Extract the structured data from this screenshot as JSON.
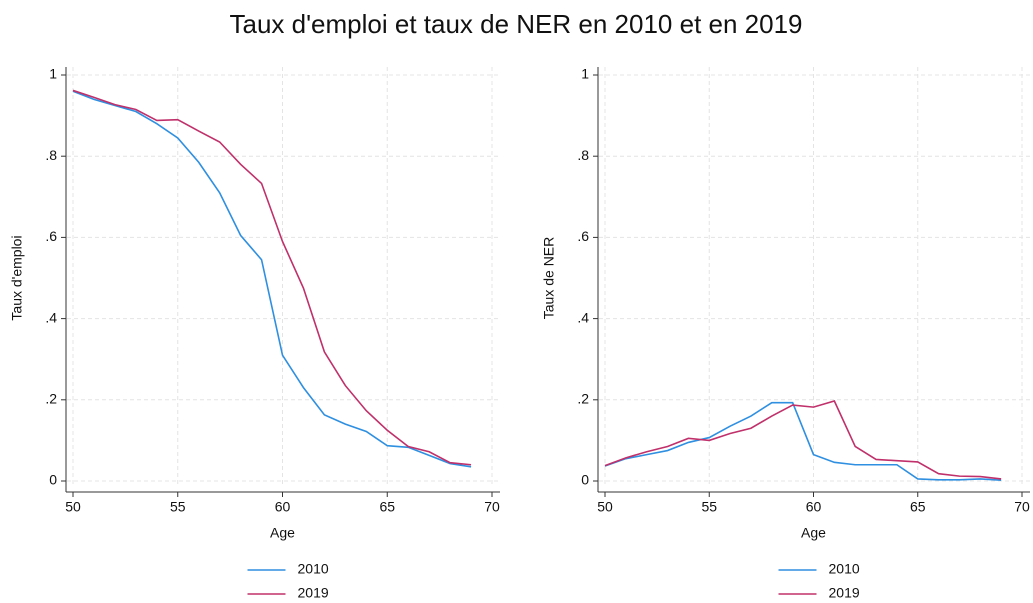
{
  "title": "Taux d'emploi et taux de NER en 2010 et en 2019",
  "chart_data": [
    {
      "type": "line",
      "xlabel": "Age",
      "ylabel": "Taux d'emploi",
      "x": [
        50,
        51,
        52,
        53,
        54,
        55,
        56,
        57,
        58,
        59,
        60,
        61,
        62,
        63,
        64,
        65,
        66,
        67,
        68,
        69
      ],
      "series": [
        {
          "name": "2010",
          "color": "#2f8fe0",
          "values": [
            0.96,
            0.94,
            0.925,
            0.91,
            0.88,
            0.845,
            0.785,
            0.71,
            0.605,
            0.545,
            0.31,
            0.23,
            0.163,
            0.14,
            0.122,
            0.087,
            0.083,
            0.063,
            0.043,
            0.035
          ]
        },
        {
          "name": "2019",
          "color": "#c0306a",
          "values": [
            0.962,
            0.945,
            0.927,
            0.915,
            0.888,
            0.89,
            0.862,
            0.835,
            0.78,
            0.733,
            0.59,
            0.475,
            0.318,
            0.235,
            0.173,
            0.125,
            0.085,
            0.072,
            0.045,
            0.04
          ]
        }
      ],
      "xlim": [
        50,
        70
      ],
      "xticks": [
        50,
        55,
        60,
        65,
        70
      ],
      "ylim": [
        0,
        1
      ],
      "yticks": [
        0,
        {
          "value": 0.2,
          "label": ".2"
        },
        {
          "value": 0.4,
          "label": ".4"
        },
        {
          "value": 0.6,
          "label": ".6"
        },
        {
          "value": 0.8,
          "label": ".8"
        },
        1
      ],
      "grid": true
    },
    {
      "type": "line",
      "xlabel": "Age",
      "ylabel": "Taux de NER",
      "x": [
        50,
        51,
        52,
        53,
        54,
        55,
        56,
        57,
        58,
        59,
        60,
        61,
        62,
        63,
        64,
        65,
        66,
        67,
        68,
        69
      ],
      "series": [
        {
          "name": "2010",
          "color": "#2f8fe0",
          "values": [
            0.037,
            0.055,
            0.065,
            0.075,
            0.095,
            0.107,
            0.135,
            0.16,
            0.193,
            0.193,
            0.065,
            0.046,
            0.04,
            0.04,
            0.04,
            0.005,
            0.003,
            0.003,
            0.005,
            0.002
          ]
        },
        {
          "name": "2019",
          "color": "#c0306a",
          "values": [
            0.038,
            0.057,
            0.072,
            0.085,
            0.105,
            0.1,
            0.117,
            0.13,
            0.16,
            0.187,
            0.182,
            0.197,
            0.085,
            0.053,
            0.05,
            0.047,
            0.018,
            0.012,
            0.011,
            0.005
          ]
        }
      ],
      "xlim": [
        50,
        70
      ],
      "xticks": [
        50,
        55,
        60,
        65,
        70
      ],
      "ylim": [
        0,
        1
      ],
      "yticks": [
        0,
        {
          "value": 0.2,
          "label": ".2"
        },
        {
          "value": 0.4,
          "label": ".4"
        },
        {
          "value": 0.6,
          "label": ".6"
        },
        {
          "value": 0.8,
          "label": ".8"
        },
        1
      ],
      "grid": true
    }
  ]
}
